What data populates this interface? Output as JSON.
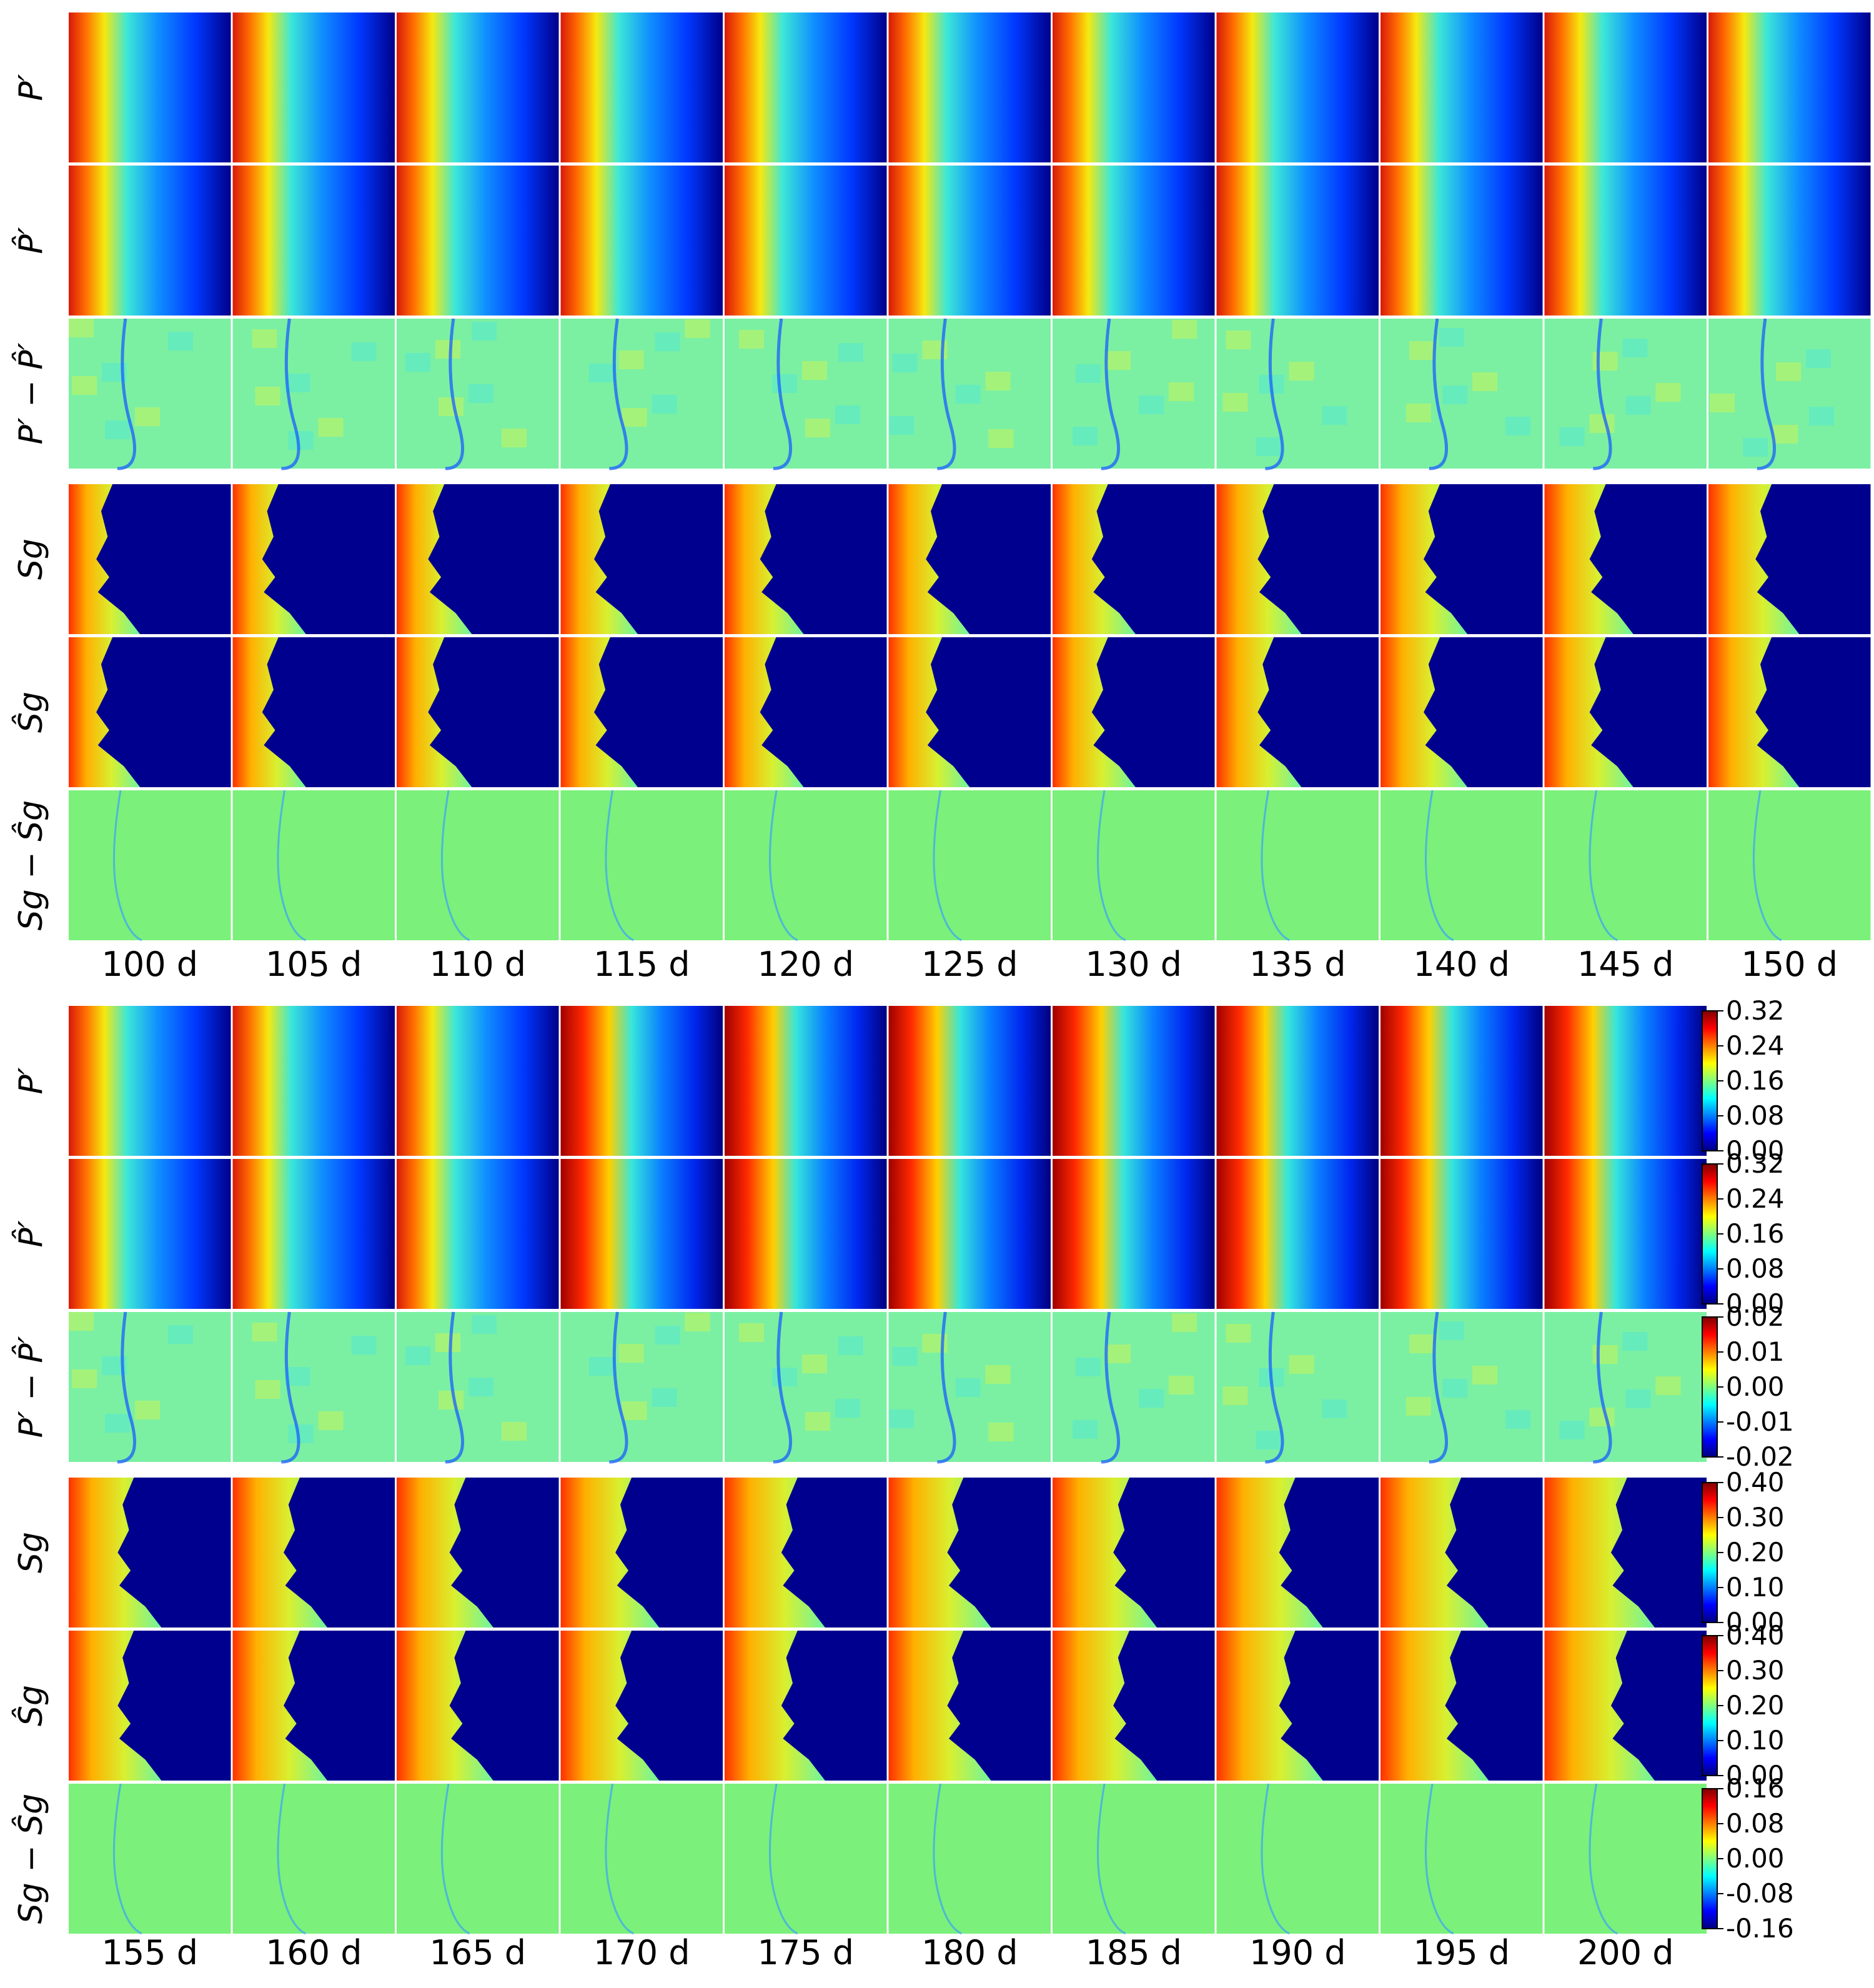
{
  "row_labels": [
    "P′",
    "P̂′",
    "P′ − P̂′",
    "Sg",
    "Ŝg",
    "Sg − Ŝg"
  ],
  "blocks": [
    {
      "times": [
        "100 d",
        "105 d",
        "110 d",
        "115 d",
        "120 d",
        "125 d",
        "130 d",
        "135 d",
        "140 d",
        "145 d",
        "150 d"
      ]
    },
    {
      "times": [
        "155 d",
        "160 d",
        "165 d",
        "170 d",
        "175 d",
        "180 d",
        "185 d",
        "190 d",
        "195 d",
        "200 d"
      ]
    }
  ],
  "colorbars": [
    {
      "ticks": [
        "0.32",
        "0.24",
        "0.16",
        "0.08",
        "0.00"
      ]
    },
    {
      "ticks": [
        "0.32",
        "0.24",
        "0.16",
        "0.08",
        "0.00"
      ]
    },
    {
      "ticks": [
        "0.02",
        "0.01",
        "0.00",
        "-0.01",
        "-0.02"
      ]
    },
    {
      "ticks": [
        "0.40",
        "0.30",
        "0.20",
        "0.10",
        "0.00"
      ]
    },
    {
      "ticks": [
        "0.40",
        "0.30",
        "0.20",
        "0.10",
        "0.00"
      ]
    },
    {
      "ticks": [
        "0.16",
        "0.08",
        "0.00",
        "-0.08",
        "-0.16"
      ]
    }
  ],
  "colormap": [
    "#00007f",
    "#0000ff",
    "#007fff",
    "#00ffff",
    "#7fff7f",
    "#ffff00",
    "#ff7f00",
    "#ff0000",
    "#7f0000"
  ]
}
